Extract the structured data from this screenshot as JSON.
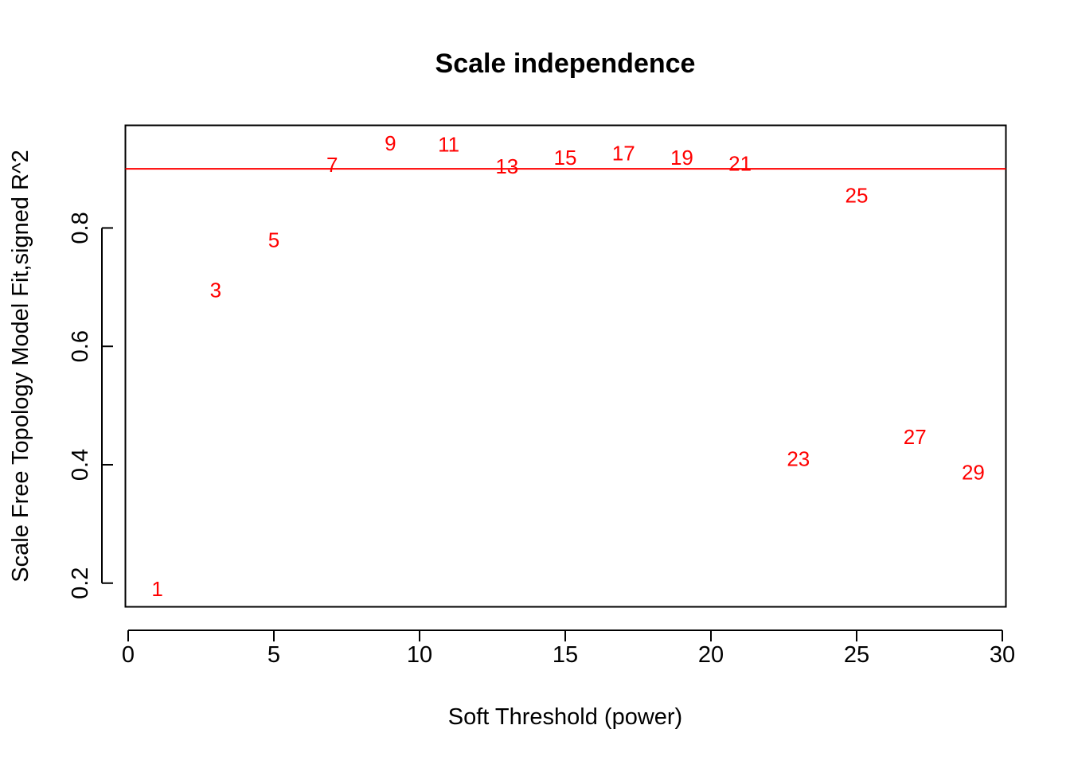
{
  "chart_data": {
    "type": "scatter",
    "title": "Scale independence",
    "xlabel": "Soft Threshold (power)",
    "ylabel": "Scale Free Topology Model Fit,signed R^2",
    "xlim": [
      0,
      30
    ],
    "ylim": [
      0.16,
      0.97
    ],
    "xticks": [
      0,
      5,
      10,
      15,
      20,
      25,
      30
    ],
    "yticks": [
      0.2,
      0.4,
      0.6,
      0.8
    ],
    "grid": false,
    "series": [
      {
        "marker": "text-label",
        "color": "#ff0000",
        "points": [
          {
            "x": 1,
            "y": 0.19,
            "label": "1"
          },
          {
            "x": 3,
            "y": 0.695,
            "label": "3"
          },
          {
            "x": 5,
            "y": 0.78,
            "label": "5"
          },
          {
            "x": 7,
            "y": 0.907,
            "label": "7"
          },
          {
            "x": 9,
            "y": 0.943,
            "label": "9"
          },
          {
            "x": 11,
            "y": 0.941,
            "label": "11"
          },
          {
            "x": 13,
            "y": 0.904,
            "label": "13"
          },
          {
            "x": 15,
            "y": 0.919,
            "label": "15"
          },
          {
            "x": 17,
            "y": 0.926,
            "label": "17"
          },
          {
            "x": 19,
            "y": 0.919,
            "label": "19"
          },
          {
            "x": 21,
            "y": 0.909,
            "label": "21"
          },
          {
            "x": 23,
            "y": 0.41,
            "label": "23"
          },
          {
            "x": 25,
            "y": 0.855,
            "label": "25"
          },
          {
            "x": 27,
            "y": 0.447,
            "label": "27"
          },
          {
            "x": 29,
            "y": 0.387,
            "label": "29"
          }
        ]
      }
    ],
    "reference_lines": [
      {
        "orientation": "horizontal",
        "y": 0.9,
        "color": "#ff0000"
      }
    ]
  }
}
